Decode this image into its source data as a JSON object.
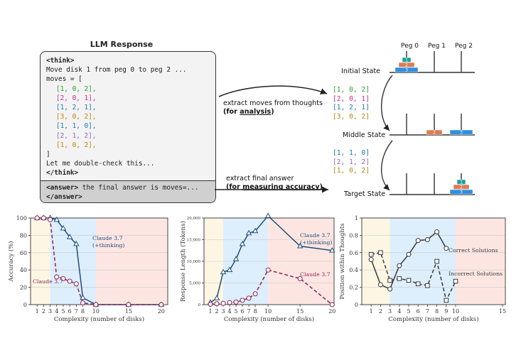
{
  "llm": {
    "title": "LLM Response",
    "think_open": "<think>",
    "line_move": "Move disk 1 from peg 0 to peg 2 ...",
    "moves_open": "moves = [",
    "moves": [
      "[1, 0, 2],",
      "[2, 0, 1],",
      "[1, 2, 1],",
      "[3, 0, 2],",
      "[1, 1, 0],",
      "[2, 1, 2],",
      "[1, 0, 2],"
    ],
    "moves_close": "]",
    "double_check": "Let me double-check this...",
    "think_close": "</think>",
    "answer_line1_tag": "<answer>",
    "answer_line1_text": " the final answer is moves=...",
    "answer_line2": "</answer>"
  },
  "move_colors": [
    "#2ca02c",
    "#d62790",
    "#1f77b4",
    "#b8860b",
    "#1f77b4",
    "#9467bd",
    "#b8860b"
  ],
  "arrows": {
    "thoughts_line1": "extract moves  from thoughts",
    "thoughts_line2_prefix": "(for ",
    "thoughts_line2_em": "analysis",
    "thoughts_line2_suffix": ")",
    "final_line1": "extract final answer",
    "final_line2_prefix": "(for ",
    "final_line2_em": "measuring accuracy",
    "final_line2_suffix": ")"
  },
  "extracted": {
    "group1": [
      "[1, 0, 2]",
      "[2, 0, 1]",
      "[1, 2, 1]",
      "[3, 0, 2]"
    ],
    "group2": [
      "[1, 1, 0]",
      "[2, 1, 2]",
      "[1, 0, 2]"
    ]
  },
  "hanoi": {
    "peg_labels": [
      "Peg 0",
      "Peg 1",
      "Peg 2"
    ],
    "states": [
      "Initial State",
      "Middle State",
      "Target State"
    ],
    "disk_colors": {
      "1": "#17a2a0",
      "2": "#e07a50",
      "3": "#2f8fe0"
    },
    "disk_numbers": [
      "1",
      "2",
      "3"
    ]
  },
  "chart_data": [
    {
      "type": "line",
      "xlabel": "Complexity (number of disks)",
      "ylabel": "Accuracy (%)",
      "xticks": [
        1,
        2,
        3,
        4,
        5,
        6,
        7,
        8,
        10,
        15,
        20
      ],
      "yticks": [
        0,
        20,
        40,
        60,
        80,
        100
      ],
      "ylim": [
        0,
        100
      ],
      "series": [
        {
          "name": "Claude 3.7 (+thinking)",
          "name_lines": [
            "Claude 3.7",
            "(+thinking)"
          ],
          "x": [
            1,
            2,
            3,
            4,
            5,
            6,
            7,
            8,
            10,
            15,
            20
          ],
          "y": [
            100,
            100,
            100,
            98,
            88,
            78,
            70,
            8,
            0,
            0,
            0
          ]
        },
        {
          "name": "Claude 3.7",
          "name_lines": [
            "Claude 3.7"
          ],
          "x": [
            1,
            2,
            3,
            4,
            5,
            6,
            7,
            8,
            10,
            15,
            20
          ],
          "y": [
            100,
            100,
            98,
            32,
            30,
            27,
            24,
            2,
            0,
            0,
            0
          ]
        }
      ]
    },
    {
      "type": "line",
      "xlabel": "Complexity (number of disks)",
      "ylabel": "Response Length (Tokens)",
      "xticks": [
        1,
        2,
        3,
        4,
        5,
        6,
        7,
        8,
        10,
        15,
        20
      ],
      "yticks": [
        0,
        5000,
        10000,
        15000,
        20000
      ],
      "ytick_labels": [
        "0",
        "5,000",
        "10,000",
        "15,000",
        "20,000"
      ],
      "ylim": [
        0,
        20000
      ],
      "series": [
        {
          "name": "Claude 3.7 (+thinking)",
          "name_lines": [
            "Claude 3.7",
            "(+thinking)"
          ],
          "x": [
            1,
            2,
            3,
            4,
            5,
            6,
            7,
            8,
            10,
            15,
            20
          ],
          "y": [
            500,
            1500,
            7500,
            8000,
            10500,
            14000,
            16500,
            17000,
            20500,
            13500,
            12500
          ]
        },
        {
          "name": "Claude 3.7",
          "name_lines": [
            "Claude 3.7"
          ],
          "x": [
            1,
            2,
            3,
            4,
            5,
            6,
            7,
            8,
            10,
            15,
            20
          ],
          "y": [
            100,
            200,
            300,
            500,
            600,
            1000,
            1500,
            2500,
            8000,
            6000,
            0
          ]
        }
      ]
    },
    {
      "type": "line",
      "xlabel": "Complexity (number of disks)",
      "ylabel": "Position within Thoughts",
      "xticks": [
        1,
        2,
        3,
        4,
        5,
        6,
        7,
        8,
        9,
        10,
        15
      ],
      "yticks": [
        0,
        0.2,
        0.4,
        0.6,
        0.8,
        1
      ],
      "ylim": [
        0,
        1
      ],
      "series": [
        {
          "name": "Correct Solutions",
          "name_lines": [
            "Correct Solutions"
          ],
          "x": [
            1,
            2,
            3,
            4,
            5,
            6,
            7,
            8,
            9
          ],
          "y": [
            0.52,
            0.23,
            0.18,
            0.45,
            0.58,
            0.74,
            0.75,
            0.84,
            0.65
          ]
        },
        {
          "name": "Incorrect Solutions",
          "name_lines": [
            "Incorrect Solutions"
          ],
          "x": [
            1,
            2,
            3,
            4,
            5,
            6,
            7,
            8,
            9,
            10
          ],
          "y": [
            0.58,
            0.6,
            0.28,
            0.3,
            0.28,
            0.24,
            0.22,
            0.5,
            0.05,
            0.27
          ]
        }
      ]
    }
  ]
}
